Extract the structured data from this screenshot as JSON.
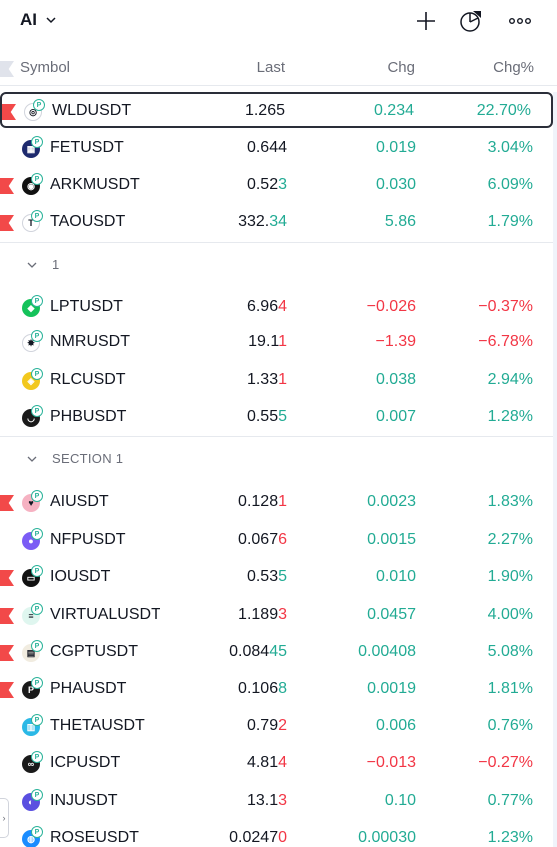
{
  "toolbar": {
    "list_name": "AI",
    "icons": [
      "chevron-down-icon",
      "plus-icon",
      "pie-chart-icon",
      "more-icon"
    ]
  },
  "header": {
    "symbol": "Symbol",
    "last": "Last",
    "chg": "Chg",
    "chg_pct": "Chg%"
  },
  "colors": {
    "up": "#22ab94",
    "down": "#f23645",
    "flag": "#f24949"
  },
  "rows": [
    {
      "symbol": "WLDUSDT",
      "last_head": "1.265",
      "last_tail": "",
      "tail_dir": "",
      "chg": "0.234",
      "chg_pct": "22.70%",
      "dir": "up",
      "flag": true,
      "logo_color": "#ffffff",
      "logo_char": "◎",
      "selected": true
    },
    {
      "symbol": "FETUSDT",
      "last_head": "0.644",
      "last_tail": "",
      "tail_dir": "",
      "chg": "0.019",
      "chg_pct": "3.04%",
      "dir": "up",
      "flag": false,
      "logo_color": "#1e2a6e",
      "logo_char": "▦",
      "selected": false
    },
    {
      "symbol": "ARKMUSDT",
      "last_head": "0.52",
      "last_tail": "3",
      "tail_dir": "up",
      "chg": "0.030",
      "chg_pct": "6.09%",
      "dir": "up",
      "flag": true,
      "logo_color": "#111111",
      "logo_char": "◉",
      "selected": false
    },
    {
      "symbol": "TAOUSDT",
      "last_head": "332.",
      "last_tail": "34",
      "tail_dir": "up",
      "chg": "5.86",
      "chg_pct": "1.79%",
      "dir": "up",
      "flag": true,
      "logo_color": "#ffffff",
      "logo_char": "T",
      "selected": false
    },
    {
      "symbol": "LPTUSDT",
      "last_head": "6.96",
      "last_tail": "4",
      "tail_dir": "down",
      "chg": "−0.026",
      "chg_pct": "−0.37%",
      "dir": "down",
      "flag": false,
      "logo_color": "#14c25a",
      "logo_char": "◆",
      "selected": false
    },
    {
      "symbol": "NMRUSDT",
      "last_head": "19.1",
      "last_tail": "1",
      "tail_dir": "down",
      "chg": "−1.39",
      "chg_pct": "−6.78%",
      "dir": "down",
      "flag": false,
      "logo_color": "#ffffff",
      "logo_char": "✸",
      "selected": false
    },
    {
      "symbol": "RLCUSDT",
      "last_head": "1.33",
      "last_tail": "1",
      "tail_dir": "down",
      "chg": "0.038",
      "chg_pct": "2.94%",
      "dir": "up",
      "flag": false,
      "logo_color": "#f2c81d",
      "logo_char": "◈",
      "selected": false
    },
    {
      "symbol": "PHBUSDT",
      "last_head": "0.55",
      "last_tail": "5",
      "tail_dir": "up",
      "chg": "0.007",
      "chg_pct": "1.28%",
      "dir": "up",
      "flag": false,
      "logo_color": "#1a1a1a",
      "logo_char": "◡",
      "selected": false
    },
    {
      "symbol": "AIUSDT",
      "last_head": "0.128",
      "last_tail": "1",
      "tail_dir": "down",
      "chg": "0.0023",
      "chg_pct": "1.83%",
      "dir": "up",
      "flag": true,
      "logo_color": "#f6b2c2",
      "logo_char": "♥",
      "selected": false
    },
    {
      "symbol": "NFPUSDT",
      "last_head": "0.067",
      "last_tail": "6",
      "tail_dir": "down",
      "chg": "0.0015",
      "chg_pct": "2.27%",
      "dir": "up",
      "flag": false,
      "logo_color": "#7b5cf5",
      "logo_char": "●",
      "selected": false
    },
    {
      "symbol": "IOUSDT",
      "last_head": "0.53",
      "last_tail": "5",
      "tail_dir": "up",
      "chg": "0.010",
      "chg_pct": "1.90%",
      "dir": "up",
      "flag": true,
      "logo_color": "#111111",
      "logo_char": "▭",
      "selected": false
    },
    {
      "symbol": "VIRTUALUSDT",
      "last_head": "1.189",
      "last_tail": "3",
      "tail_dir": "down",
      "chg": "0.0457",
      "chg_pct": "4.00%",
      "dir": "up",
      "flag": true,
      "logo_color": "#dff6ef",
      "logo_char": "≡",
      "selected": false
    },
    {
      "symbol": "CGPTUSDT",
      "last_head": "0.084",
      "last_tail": "45",
      "tail_dir": "up",
      "chg": "0.00408",
      "chg_pct": "5.08%",
      "dir": "up",
      "flag": true,
      "logo_color": "#f1ece0",
      "logo_char": "▤",
      "selected": false
    },
    {
      "symbol": "PHAUSDT",
      "last_head": "0.106",
      "last_tail": "8",
      "tail_dir": "up",
      "chg": "0.0019",
      "chg_pct": "1.81%",
      "dir": "up",
      "flag": true,
      "logo_color": "#1a1a1a",
      "logo_char": "P",
      "selected": false
    },
    {
      "symbol": "THETAUSDT",
      "last_head": "0.79",
      "last_tail": "2",
      "tail_dir": "down",
      "chg": "0.006",
      "chg_pct": "0.76%",
      "dir": "up",
      "flag": false,
      "logo_color": "#2ab8e6",
      "logo_char": "▥",
      "selected": false
    },
    {
      "symbol": "ICPUSDT",
      "last_head": "4.81",
      "last_tail": "4",
      "tail_dir": "down",
      "chg": "−0.013",
      "chg_pct": "−0.27%",
      "dir": "down",
      "flag": false,
      "logo_color": "#1a1a1a",
      "logo_char": "∞",
      "selected": false
    },
    {
      "symbol": "INJUSDT",
      "last_head": "13.1",
      "last_tail": "3",
      "tail_dir": "down",
      "chg": "0.10",
      "chg_pct": "0.77%",
      "dir": "up",
      "flag": false,
      "logo_color": "#5a4fe0",
      "logo_char": "◐",
      "selected": false
    },
    {
      "symbol": "ROSEUSDT",
      "last_head": "0.0247",
      "last_tail": "0",
      "tail_dir": "down",
      "chg": "0.00030",
      "chg_pct": "1.23%",
      "dir": "up",
      "flag": false,
      "logo_color": "#1a8cff",
      "logo_char": "◍",
      "selected": false
    }
  ],
  "sections": [
    {
      "label": "1"
    },
    {
      "label": "SECTION 1"
    }
  ]
}
